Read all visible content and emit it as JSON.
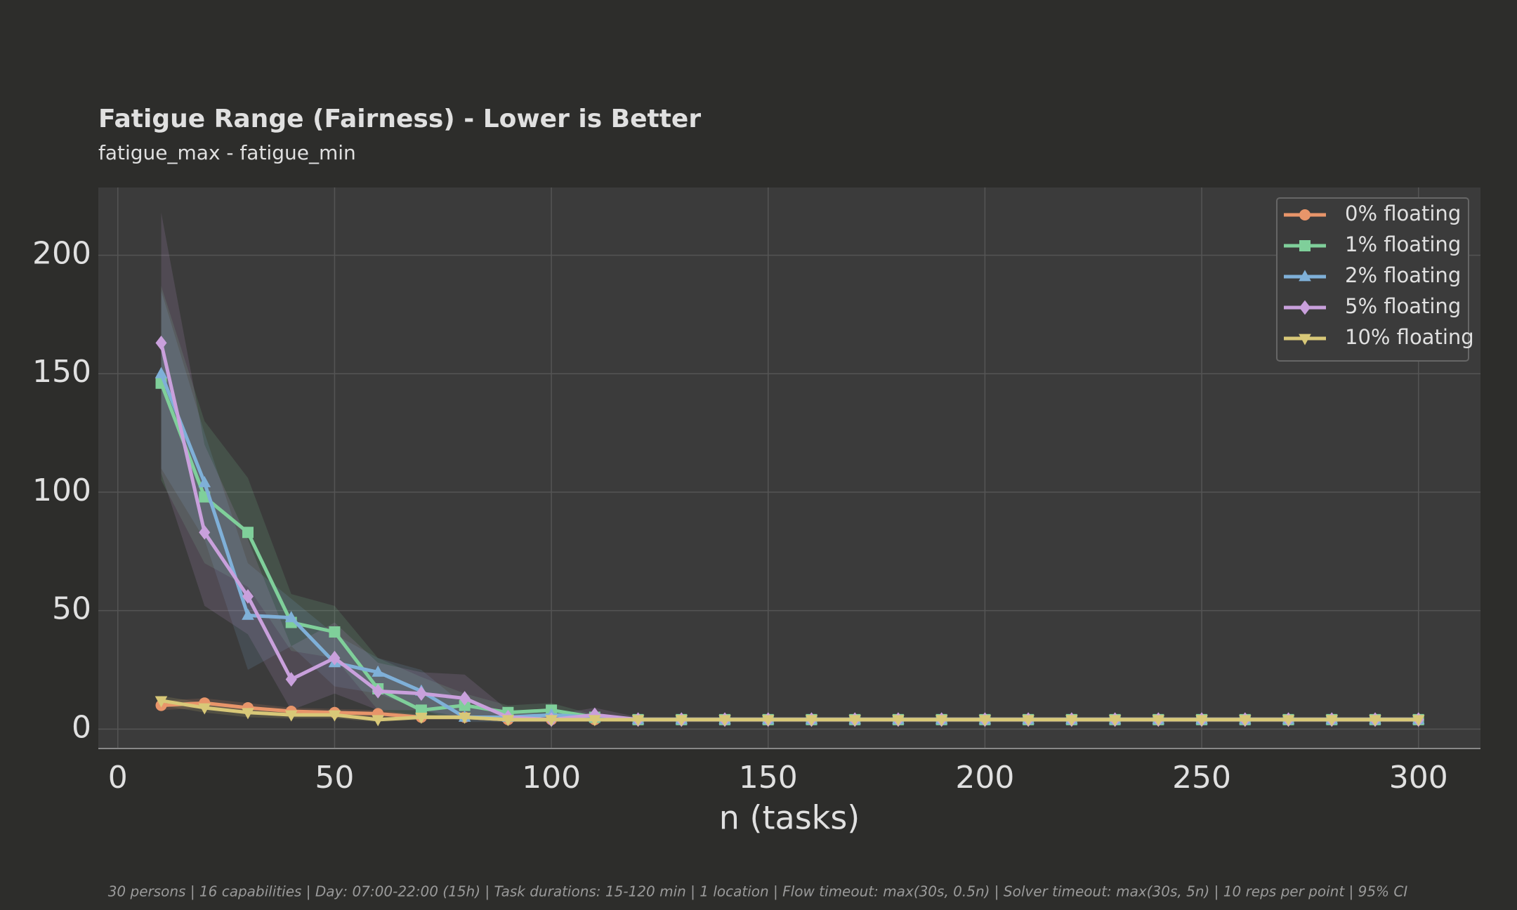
{
  "chart_data": {
    "type": "line",
    "title": "Fatigue Range (Fairness)  -  Lower is Better",
    "subtitle": "fatigue_max - fatigue_min",
    "x_label": "n (tasks)",
    "footnote": "30 persons  |  16 capabilities  |  Day: 07:00-22:00 (15h)  |  Task durations: 15-120 min  |  1 location  |  Flow timeout: max(30s, 0.5n)  |  Solver timeout: max(30s, 5n)  |  10 reps per point  |  95% CI",
    "x": [
      10,
      20,
      30,
      40,
      50,
      60,
      70,
      80,
      90,
      100,
      110,
      120,
      130,
      140,
      150,
      160,
      170,
      180,
      190,
      200,
      210,
      220,
      230,
      240,
      250,
      260,
      270,
      280,
      290,
      300
    ],
    "xlim": [
      -4.5,
      314.3
    ],
    "ylim": [
      -8.2,
      228.6
    ],
    "xticks": [
      0,
      50,
      100,
      150,
      200,
      250,
      300
    ],
    "yticks": [
      0,
      50,
      100,
      150,
      200
    ],
    "grid": true,
    "legend": "upper right",
    "series": [
      {
        "name": "0% floating",
        "color": "#e8956a",
        "marker": "circle",
        "values": [
          10,
          11,
          9,
          7.5,
          7,
          6.5,
          5,
          5,
          4,
          4,
          4,
          4,
          4,
          4,
          4,
          4,
          4,
          4,
          4,
          4,
          4,
          4,
          4,
          4,
          4,
          4,
          4,
          4,
          4,
          4
        ],
        "ci_lower": [
          8,
          9,
          7,
          6,
          5.5,
          5,
          4,
          4,
          3.5,
          3.5,
          3.5,
          3.5,
          3.5,
          3.5,
          3.5,
          3.5,
          3.5,
          3.5,
          3.5,
          3.5,
          3.5,
          3.5,
          3.5,
          3.5,
          3.5,
          3.5,
          3.5,
          3.5,
          3.5,
          3.5
        ],
        "ci_upper": [
          12,
          13,
          11,
          9,
          8.5,
          8,
          6,
          6,
          5,
          5,
          5,
          5,
          5,
          5,
          5,
          5,
          5,
          5,
          5,
          5,
          5,
          5,
          5,
          5,
          5,
          5,
          5,
          5,
          5,
          5
        ]
      },
      {
        "name": "1% floating",
        "color": "#7fcf9a",
        "marker": "square",
        "values": [
          146,
          98,
          83,
          45,
          41,
          17,
          8,
          10,
          7,
          8,
          5,
          4,
          4,
          4,
          4,
          4,
          4,
          4,
          4,
          4,
          4,
          4,
          4,
          4,
          4,
          4,
          4,
          4,
          4,
          4
        ],
        "ci_lower": [
          105,
          70,
          60,
          33,
          30,
          8,
          5,
          5,
          5,
          5,
          4,
          3.5,
          3.5,
          3.5,
          3.5,
          3.5,
          3.5,
          3.5,
          3.5,
          3.5,
          3.5,
          3.5,
          3.5,
          3.5,
          3.5,
          3.5,
          3.5,
          3.5,
          3.5,
          3.5
        ],
        "ci_upper": [
          187,
          130,
          106,
          57,
          52,
          30,
          22,
          15,
          10,
          11,
          6,
          5,
          5,
          5,
          5,
          5,
          5,
          5,
          5,
          5,
          5,
          5,
          5,
          5,
          5,
          5,
          5,
          5,
          5,
          5
        ]
      },
      {
        "name": "2% floating",
        "color": "#7fb0d8",
        "marker": "triangle",
        "values": [
          150,
          104,
          48,
          47,
          28,
          24,
          16,
          5,
          5,
          6,
          5,
          4,
          4,
          4,
          4,
          4,
          4,
          4,
          4,
          4,
          4,
          4,
          4,
          4,
          4,
          4,
          4,
          4,
          4,
          4
        ],
        "ci_lower": [
          110,
          80,
          25,
          35,
          18,
          15,
          8,
          3,
          3,
          4,
          4,
          3.5,
          3.5,
          3.5,
          3.5,
          3.5,
          3.5,
          3.5,
          3.5,
          3.5,
          3.5,
          3.5,
          3.5,
          3.5,
          3.5,
          3.5,
          3.5,
          3.5,
          3.5,
          3.5
        ],
        "ci_upper": [
          185,
          125,
          70,
          55,
          40,
          30,
          25,
          10,
          8,
          8,
          6,
          5,
          5,
          5,
          5,
          5,
          5,
          5,
          5,
          5,
          5,
          5,
          5,
          5,
          5,
          5,
          5,
          5,
          5,
          5
        ]
      },
      {
        "name": "5% floating",
        "color": "#c9a0dc",
        "marker": "diamond",
        "values": [
          163,
          83,
          56,
          21,
          30,
          16,
          15,
          13,
          5,
          4,
          6,
          4,
          4,
          4,
          4,
          4,
          4,
          4,
          4,
          4,
          4,
          4,
          4,
          4,
          4,
          4,
          4,
          4,
          4,
          4
        ],
        "ci_lower": [
          108,
          52,
          40,
          8,
          15,
          8,
          8,
          5,
          3,
          3,
          4,
          3,
          3,
          3,
          3,
          3,
          3,
          3,
          3,
          3,
          3,
          3,
          3,
          3,
          3,
          3,
          3,
          3,
          3,
          3
        ],
        "ci_upper": [
          218,
          120,
          80,
          35,
          45,
          28,
          24,
          23,
          8,
          6,
          9,
          5,
          5,
          5,
          5,
          5,
          5,
          5,
          5,
          5,
          5,
          5,
          5,
          5,
          5,
          5,
          5,
          5,
          5,
          5
        ]
      },
      {
        "name": "10% floating",
        "color": "#d8c878",
        "marker": "triangle-down",
        "values": [
          12,
          9,
          7,
          6,
          6,
          4,
          5,
          5,
          4,
          4,
          4,
          4,
          4,
          4,
          4,
          4,
          4,
          4,
          4,
          4,
          4,
          4,
          4,
          4,
          4,
          4,
          4,
          4,
          4,
          4
        ],
        "ci_lower": [
          10,
          7,
          5,
          4.5,
          4.5,
          3,
          4,
          4,
          3,
          3,
          3,
          3,
          3,
          3,
          3,
          3,
          3,
          3,
          3,
          3,
          3,
          3,
          3,
          3,
          3,
          3,
          3,
          3,
          3,
          3
        ],
        "ci_upper": [
          14,
          11,
          9,
          7.5,
          7.5,
          5,
          6,
          6,
          5,
          5,
          5,
          5,
          5,
          5,
          5,
          5,
          5,
          5,
          5,
          5,
          5,
          5,
          5,
          5,
          5,
          5,
          5,
          5,
          5,
          5
        ]
      }
    ]
  }
}
